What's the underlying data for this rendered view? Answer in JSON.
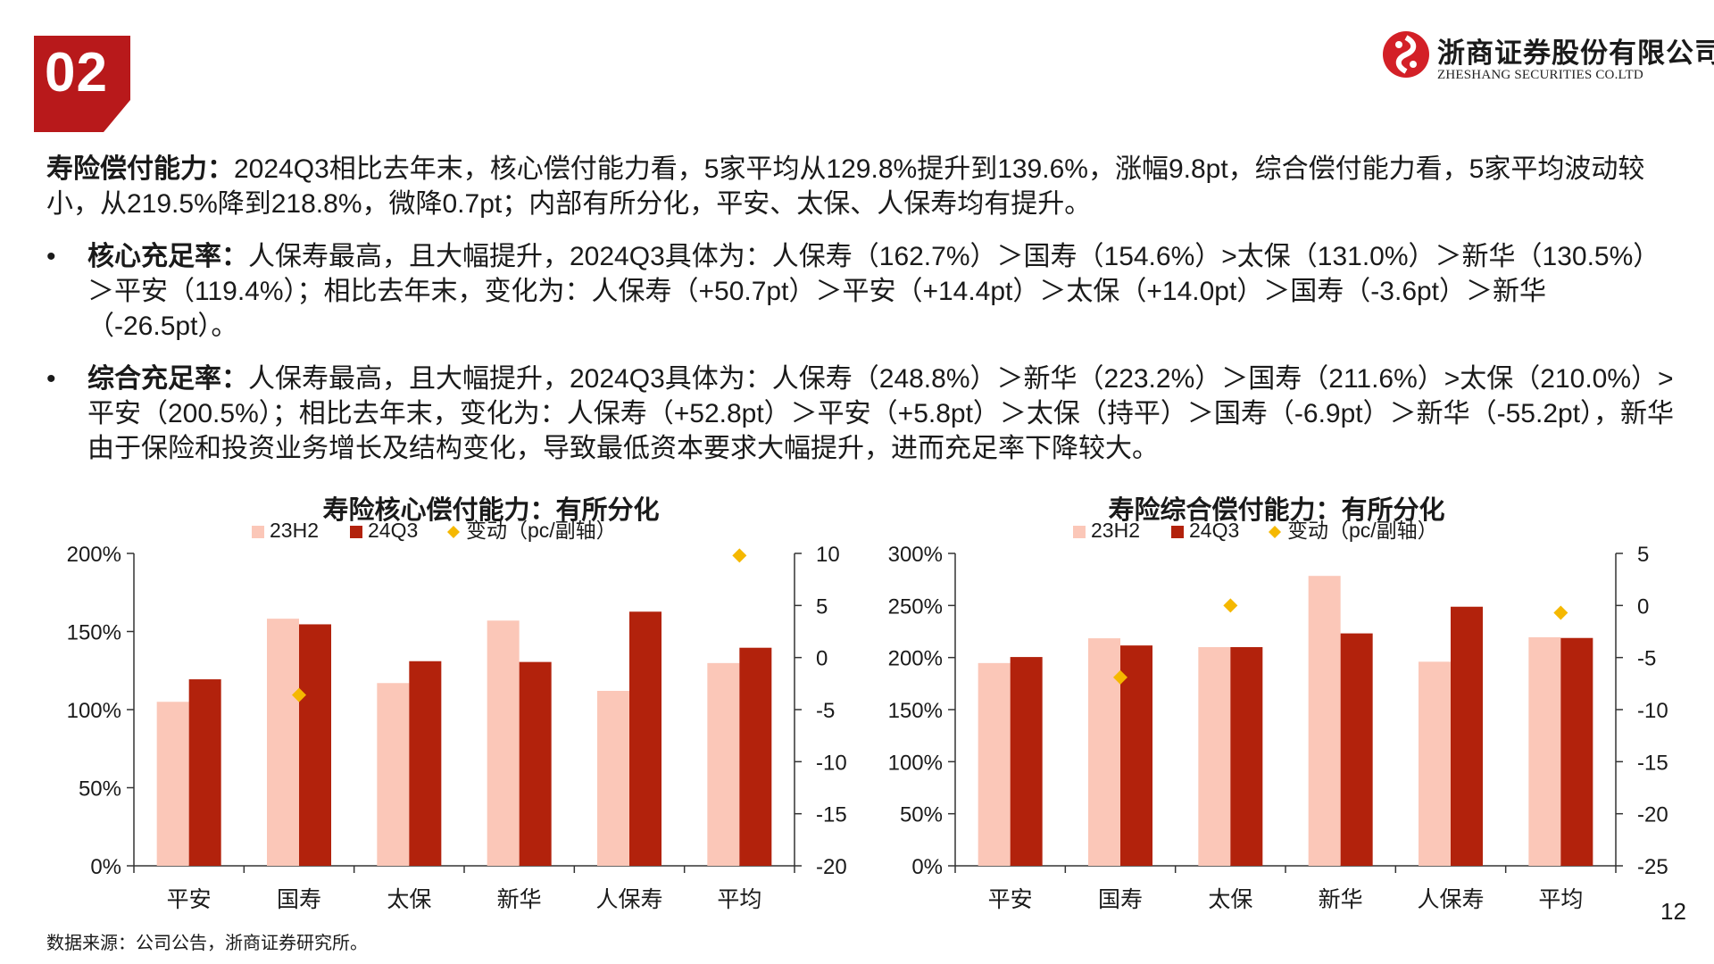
{
  "header": {
    "section_number": "02",
    "company_cn": "浙商证券股份有限公司",
    "company_en": "ZHESHANG SECURITIES CO.LTD",
    "brand_color": "#b8191b"
  },
  "lead": {
    "title": "寿险偿付能力：",
    "text": "2024Q3相比去年末，核心偿付能力看，5家平均从129.8%提升到139.6%，涨幅9.8pt，综合偿付能力看，5家平均波动较小，从219.5%降到218.8%，微降0.7pt；内部有所分化，平安、太保、人保寿均有提升。"
  },
  "bullets": [
    {
      "marker": "•",
      "title": "核心充足率：",
      "text": "人保寿最高，且大幅提升，2024Q3具体为：人保寿（162.7%）＞国寿（154.6%）>太保（131.0%）＞新华（130.5%）＞平安（119.4%）；相比去年末，变化为：人保寿（+50.7pt）＞平安（+14.4pt）＞太保（+14.0pt）＞国寿（-3.6pt）＞新华（-26.5pt）。"
    },
    {
      "marker": "•",
      "title": "综合充足率：",
      "text": "人保寿最高，且大幅提升，2024Q3具体为：人保寿（248.8%）＞新华（223.2%）＞国寿（211.6%）>太保（210.0%）>平安（200.5%）；相比去年末，变化为：人保寿（+52.8pt）＞平安（+5.8pt）＞太保（持平）＞国寿（-6.9pt）＞新华（-55.2pt），新华由于保险和投资业务增长及结构变化，导致最低资本要求大幅提升，进而充足率下降较大。"
    }
  ],
  "chart_data": [
    {
      "type": "bar",
      "title": "寿险核心偿付能力：有所分化",
      "categories": [
        "平安",
        "国寿",
        "太保",
        "新华",
        "人保寿",
        "平均"
      ],
      "series": [
        {
          "name": "23H2",
          "values": [
            105.0,
            158.2,
            117.0,
            157.0,
            112.0,
            129.8
          ],
          "color": "#fbc7b8",
          "axis": "left"
        },
        {
          "name": "24Q3",
          "values": [
            119.4,
            154.6,
            131.0,
            130.5,
            162.7,
            139.6
          ],
          "color": "#b2220c",
          "axis": "left"
        },
        {
          "name": "变动（pc/副轴）",
          "values": [
            null,
            -3.6,
            null,
            null,
            null,
            9.8
          ],
          "color": "#f5b800",
          "axis": "right",
          "marker": "diamond"
        }
      ],
      "left_ticks": [
        "0%",
        "50%",
        "100%",
        "150%",
        "200%"
      ],
      "left_range": [
        0,
        200
      ],
      "right_ticks": [
        "-20",
        "-15",
        "-10",
        "-5",
        "0",
        "5",
        "10"
      ],
      "right_range": [
        -20,
        10
      ],
      "legend": "top"
    },
    {
      "type": "bar",
      "title": "寿险综合偿付能力：有所分化",
      "categories": [
        "平安",
        "国寿",
        "太保",
        "新华",
        "人保寿",
        "平均"
      ],
      "series": [
        {
          "name": "23H2",
          "values": [
            194.7,
            218.5,
            210.0,
            278.4,
            196.0,
            219.5
          ],
          "color": "#fbc7b8",
          "axis": "left"
        },
        {
          "name": "24Q3",
          "values": [
            200.5,
            211.6,
            210.0,
            223.2,
            248.8,
            218.8
          ],
          "color": "#b2220c",
          "axis": "left"
        },
        {
          "name": "变动（pc/副轴）",
          "values": [
            null,
            -6.9,
            0.0,
            null,
            null,
            -0.7
          ],
          "color": "#f5b800",
          "axis": "right",
          "marker": "diamond"
        }
      ],
      "left_ticks": [
        "0%",
        "50%",
        "100%",
        "150%",
        "200%",
        "250%",
        "300%"
      ],
      "left_range": [
        0,
        300
      ],
      "right_ticks": [
        "-25",
        "-20",
        "-15",
        "-10",
        "-5",
        "0",
        "5"
      ],
      "right_range": [
        -25,
        5
      ],
      "legend": "top"
    }
  ],
  "footer": {
    "source": "数据来源：公司公告，浙商证券研究所。",
    "page_number": "12"
  }
}
